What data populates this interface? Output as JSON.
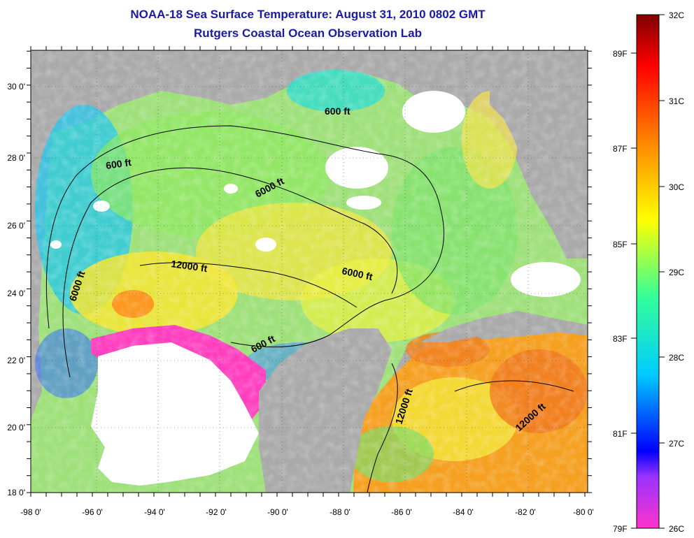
{
  "title": "NOAA-18 Sea Surface Temperature:  August 31, 2010 0802 GMT",
  "subtitle": "Rutgers Coastal Ocean Observation Lab",
  "map": {
    "lon_range": [
      -98,
      -80
    ],
    "lat_range": [
      18,
      31
    ],
    "lon_ticks": [
      "-98 0'",
      "-96 0'",
      "-94 0'",
      "-92 0'",
      "-90 0'",
      "-88 0'",
      "-86 0'",
      "-84 0'",
      "-82 0'",
      "-80 0'"
    ],
    "lat_ticks": [
      "18 0'",
      "20 0'",
      "22 0'",
      "24 0'",
      "26 0'",
      "28 0'",
      "30 0'"
    ],
    "land_color": "#aaaaaa",
    "cloud_color": "#ffffff",
    "contour_labels": [
      "600 ft",
      "600 ft",
      "6000 ft",
      "12000 ft",
      "6000 ft",
      "6000 ft",
      "600 ft",
      "12000 ft",
      "12000 ft"
    ]
  },
  "colorbar": {
    "celsius_labels": [
      "32C",
      "31C",
      "30C",
      "29C",
      "28C",
      "27C",
      "26C"
    ],
    "fahrenheit_labels": [
      "89F",
      "87F",
      "85F",
      "83F",
      "81F",
      "79F"
    ],
    "range_c": [
      26,
      32
    ],
    "stops": [
      "#ff33cc",
      "#9933ff",
      "#0000ff",
      "#00ccff",
      "#33ff99",
      "#ffff00",
      "#ff8800",
      "#ff0000",
      "#800000"
    ]
  }
}
